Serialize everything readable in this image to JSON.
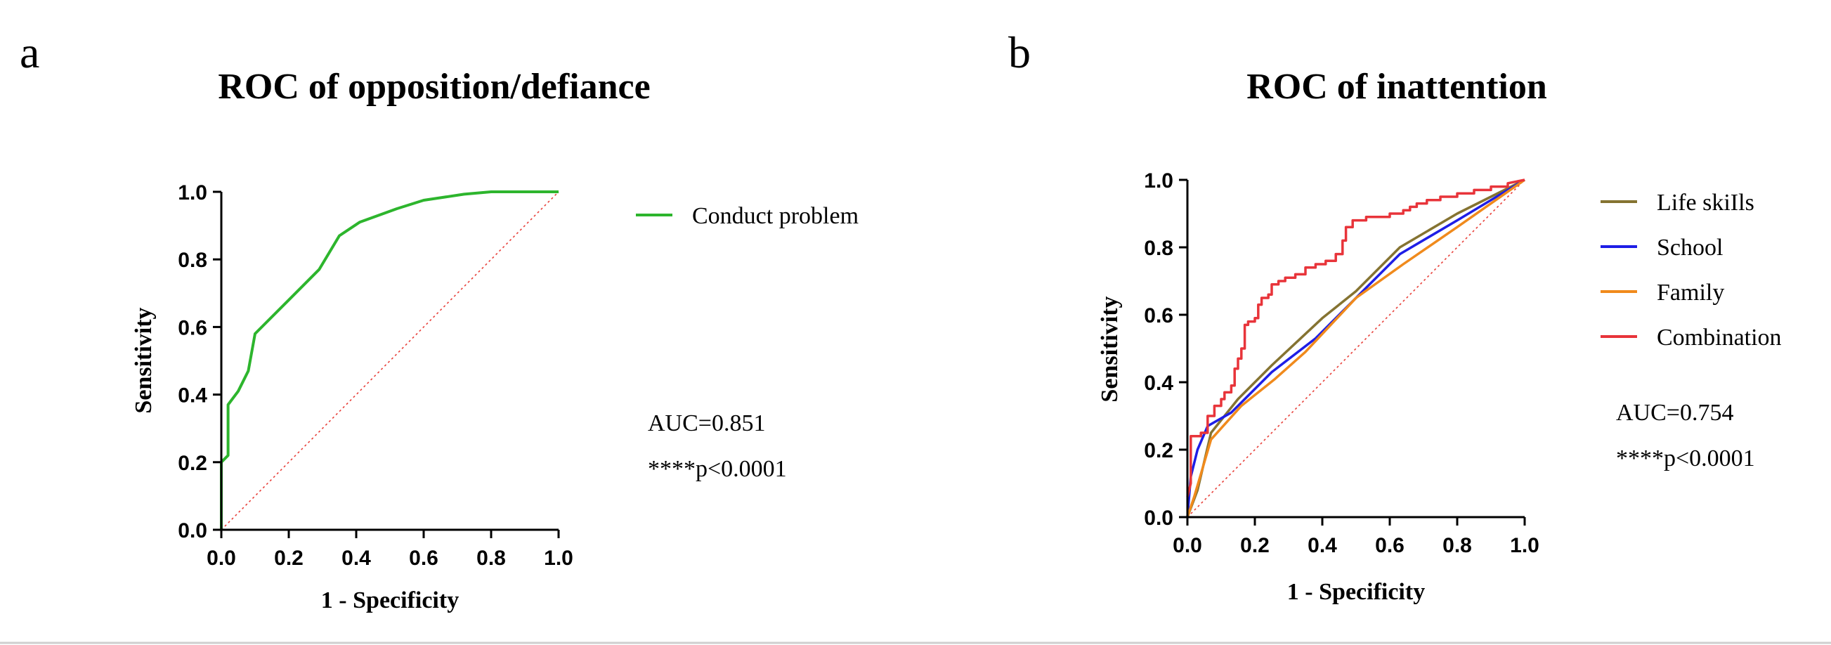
{
  "chart_data": [
    {
      "panel": "a",
      "type": "line",
      "title": "ROC of opposition/defiance",
      "xlabel": "1 - Specificity",
      "ylabel": "Sensitivity",
      "xlim": [
        0,
        1
      ],
      "ylim": [
        0,
        1
      ],
      "xticks": [
        "0.0",
        "0.2",
        "0.4",
        "0.6",
        "0.8",
        "1.0"
      ],
      "yticks": [
        "0.0",
        "0.2",
        "0.4",
        "0.6",
        "0.8",
        "1.0"
      ],
      "legend_position": "right",
      "reference_line": {
        "color": "#e8403a"
      },
      "annotations": [
        "AUC=0.851",
        "****p<0.0001"
      ],
      "series": [
        {
          "name": "Conduct problem",
          "color": "#2db52d",
          "points": [
            [
              0,
              0
            ],
            [
              0,
              0.2
            ],
            [
              0.02,
              0.22
            ],
            [
              0.02,
              0.37
            ],
            [
              0.05,
              0.41
            ],
            [
              0.08,
              0.47
            ],
            [
              0.1,
              0.58
            ],
            [
              0.2,
              0.68
            ],
            [
              0.29,
              0.77
            ],
            [
              0.35,
              0.87
            ],
            [
              0.41,
              0.91
            ],
            [
              0.52,
              0.95
            ],
            [
              0.6,
              0.975
            ],
            [
              0.72,
              0.993
            ],
            [
              0.8,
              1.0
            ],
            [
              1.0,
              1.0
            ]
          ]
        }
      ]
    },
    {
      "panel": "b",
      "type": "line",
      "title": "ROC of inattention",
      "xlabel": "1 - Specificity",
      "ylabel": "Sensitivity",
      "xlim": [
        0,
        1
      ],
      "ylim": [
        0,
        1
      ],
      "xticks": [
        "0.0",
        "0.2",
        "0.4",
        "0.6",
        "0.8",
        "1.0"
      ],
      "yticks": [
        "0.0",
        "0.2",
        "0.4",
        "0.6",
        "0.8",
        "1.0"
      ],
      "legend_position": "right",
      "reference_line": {
        "color": "#e8403a"
      },
      "annotations": [
        "AUC=0.754",
        "****p<0.0001"
      ],
      "series": [
        {
          "name": "Life skills",
          "legend_text": "Life skiIls",
          "color": "#857331",
          "points": [
            [
              0,
              0
            ],
            [
              0.03,
              0.08
            ],
            [
              0.07,
              0.25
            ],
            [
              0.15,
              0.35
            ],
            [
              0.25,
              0.45
            ],
            [
              0.4,
              0.59
            ],
            [
              0.5,
              0.67
            ],
            [
              0.63,
              0.8
            ],
            [
              0.8,
              0.9
            ],
            [
              1,
              1
            ]
          ]
        },
        {
          "name": "School",
          "color": "#1e1ee6",
          "points": [
            [
              0,
              0
            ],
            [
              0.01,
              0.12
            ],
            [
              0.03,
              0.2
            ],
            [
              0.06,
              0.27
            ],
            [
              0.13,
              0.31
            ],
            [
              0.25,
              0.43
            ],
            [
              0.38,
              0.53
            ],
            [
              0.5,
              0.65
            ],
            [
              0.63,
              0.78
            ],
            [
              0.8,
              0.88
            ],
            [
              1,
              1
            ]
          ]
        },
        {
          "name": "Family",
          "color": "#f08a1c",
          "points": [
            [
              0,
              0
            ],
            [
              0.02,
              0.06
            ],
            [
              0.07,
              0.23
            ],
            [
              0.16,
              0.33
            ],
            [
              0.26,
              0.41
            ],
            [
              0.35,
              0.49
            ],
            [
              0.5,
              0.65
            ],
            [
              0.64,
              0.75
            ],
            [
              0.8,
              0.86
            ],
            [
              1,
              1
            ]
          ]
        },
        {
          "name": "Combination",
          "color": "#e8343a",
          "points": [
            [
              0,
              0.06
            ],
            [
              0.01,
              0.1
            ],
            [
              0.01,
              0.24
            ],
            [
              0.04,
              0.24
            ],
            [
              0.04,
              0.25
            ],
            [
              0.06,
              0.25
            ],
            [
              0.06,
              0.3
            ],
            [
              0.08,
              0.3
            ],
            [
              0.08,
              0.33
            ],
            [
              0.1,
              0.33
            ],
            [
              0.1,
              0.35
            ],
            [
              0.11,
              0.35
            ],
            [
              0.11,
              0.37
            ],
            [
              0.13,
              0.37
            ],
            [
              0.13,
              0.39
            ],
            [
              0.14,
              0.39
            ],
            [
              0.14,
              0.44
            ],
            [
              0.15,
              0.44
            ],
            [
              0.15,
              0.47
            ],
            [
              0.16,
              0.47
            ],
            [
              0.16,
              0.5
            ],
            [
              0.17,
              0.5
            ],
            [
              0.17,
              0.57
            ],
            [
              0.18,
              0.57
            ],
            [
              0.18,
              0.58
            ],
            [
              0.2,
              0.58
            ],
            [
              0.2,
              0.59
            ],
            [
              0.21,
              0.59
            ],
            [
              0.21,
              0.63
            ],
            [
              0.22,
              0.63
            ],
            [
              0.22,
              0.65
            ],
            [
              0.24,
              0.65
            ],
            [
              0.24,
              0.66
            ],
            [
              0.25,
              0.66
            ],
            [
              0.25,
              0.69
            ],
            [
              0.27,
              0.69
            ],
            [
              0.27,
              0.7
            ],
            [
              0.29,
              0.7
            ],
            [
              0.29,
              0.71
            ],
            [
              0.32,
              0.71
            ],
            [
              0.32,
              0.72
            ],
            [
              0.35,
              0.72
            ],
            [
              0.35,
              0.74
            ],
            [
              0.38,
              0.74
            ],
            [
              0.38,
              0.75
            ],
            [
              0.41,
              0.75
            ],
            [
              0.41,
              0.76
            ],
            [
              0.44,
              0.76
            ],
            [
              0.44,
              0.78
            ],
            [
              0.46,
              0.78
            ],
            [
              0.46,
              0.82
            ],
            [
              0.47,
              0.82
            ],
            [
              0.47,
              0.86
            ],
            [
              0.49,
              0.86
            ],
            [
              0.49,
              0.88
            ],
            [
              0.53,
              0.88
            ],
            [
              0.53,
              0.89
            ],
            [
              0.6,
              0.89
            ],
            [
              0.6,
              0.9
            ],
            [
              0.64,
              0.9
            ],
            [
              0.64,
              0.91
            ],
            [
              0.66,
              0.91
            ],
            [
              0.66,
              0.92
            ],
            [
              0.68,
              0.92
            ],
            [
              0.68,
              0.93
            ],
            [
              0.71,
              0.93
            ],
            [
              0.71,
              0.94
            ],
            [
              0.75,
              0.94
            ],
            [
              0.75,
              0.95
            ],
            [
              0.8,
              0.95
            ],
            [
              0.8,
              0.96
            ],
            [
              0.85,
              0.96
            ],
            [
              0.85,
              0.97
            ],
            [
              0.9,
              0.97
            ],
            [
              0.9,
              0.98
            ],
            [
              0.95,
              0.98
            ],
            [
              0.95,
              0.99
            ],
            [
              1,
              1
            ]
          ]
        }
      ]
    }
  ]
}
